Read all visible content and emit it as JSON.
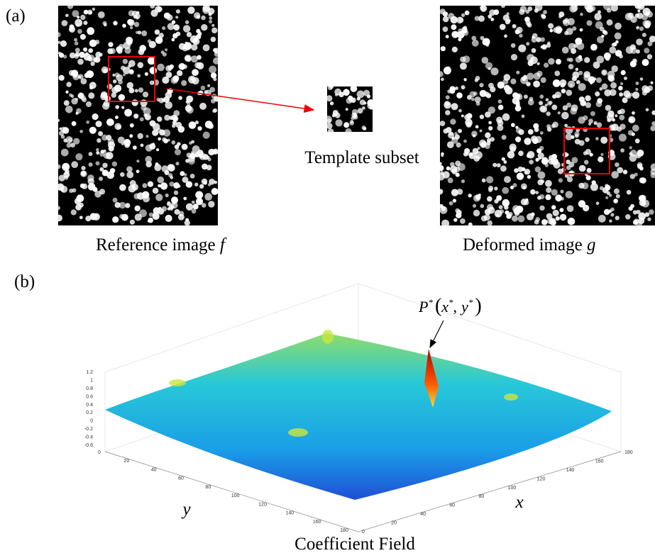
{
  "panel_a": {
    "label": "(a)",
    "reference_caption": "Reference image",
    "reference_symbol": "f",
    "template_caption": "Template subset",
    "deformed_caption": "Deformed image",
    "deformed_symbol": "g"
  },
  "panel_b": {
    "label": "(b)",
    "peak_label": {
      "name": "P",
      "star": "*",
      "open": "(",
      "x": "x",
      "comma": ",",
      "y": "y",
      "close": ")"
    },
    "z_ticks": [
      -0.6,
      -0.4,
      -0.2,
      0,
      0.2,
      0.4,
      0.6,
      0.8,
      1,
      1.2
    ],
    "y_ticks": [
      0,
      20,
      40,
      60,
      80,
      100,
      120,
      140,
      160,
      180
    ],
    "x_ticks": [
      0,
      20,
      40,
      60,
      80,
      100,
      120,
      140,
      160,
      180
    ],
    "x_label": "x",
    "y_label": "y",
    "caption": "Coefficient Field"
  }
}
